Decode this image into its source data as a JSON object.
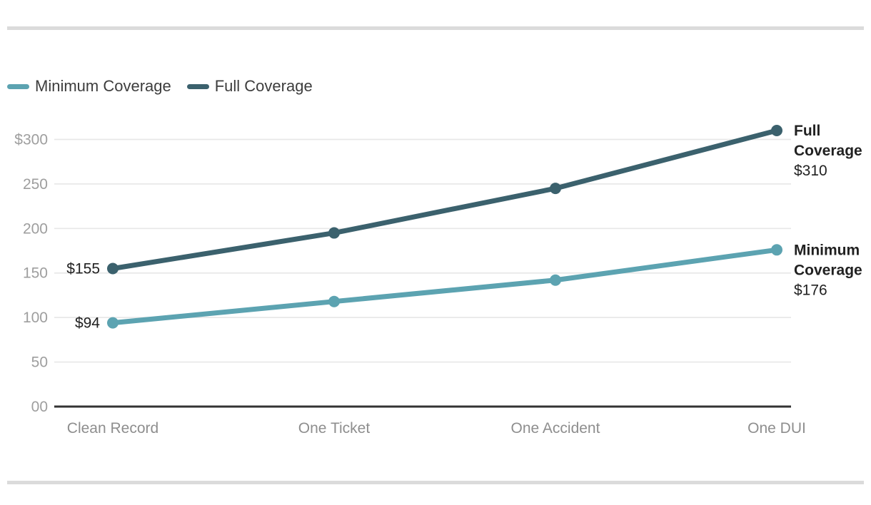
{
  "legend": {
    "items": [
      {
        "label": "Minimum Coverage",
        "color": "#5ca3b1"
      },
      {
        "label": "Full Coverage",
        "color": "#3b616d"
      }
    ]
  },
  "chart_data": {
    "type": "line",
    "categories": [
      "Clean Record",
      "One Ticket",
      "One Accident",
      "One DUI"
    ],
    "series": [
      {
        "name": "Minimum Coverage",
        "color": "#5ca3b1",
        "values": [
          94,
          118,
          142,
          176
        ],
        "first_point_label": "$94",
        "end_label_lines": [
          "Minimum",
          "Coverage"
        ],
        "end_label_value": "$176"
      },
      {
        "name": "Full Coverage",
        "color": "#3b616d",
        "values": [
          155,
          195,
          245,
          310
        ],
        "first_point_label": "$155",
        "end_label_lines": [
          "Full",
          "Coverage"
        ],
        "end_label_value": "$310"
      }
    ],
    "y_ticks": [
      {
        "value": 300,
        "label": "$300"
      },
      {
        "value": 250,
        "label": "250"
      },
      {
        "value": 200,
        "label": "200"
      },
      {
        "value": 150,
        "label": "150"
      },
      {
        "value": 100,
        "label": "100"
      },
      {
        "value": 50,
        "label": "50"
      },
      {
        "value": 0,
        "label": "00"
      }
    ],
    "ylim": [
      0,
      325
    ],
    "grid": true,
    "legend_position": "top-left",
    "grid_color": "#e8e8e8",
    "axis_color": "#333333",
    "y_tick_color": "#9e9e9e",
    "x_tick_color": "#8e8e8e",
    "point_label_color": "#212121",
    "end_label_color": "#212121"
  }
}
